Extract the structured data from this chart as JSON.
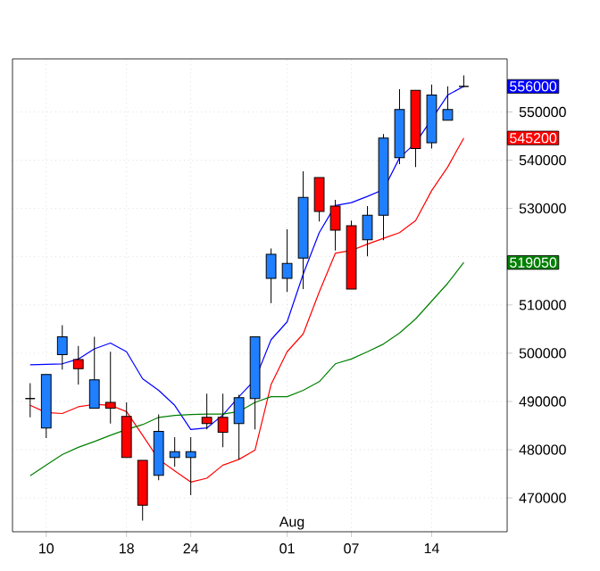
{
  "chart_data": {
    "type": "candlestick",
    "categories": [
      null,
      "10",
      null,
      null,
      null,
      null,
      "18",
      null,
      null,
      null,
      "24",
      null,
      null,
      null,
      null,
      null,
      "01",
      null,
      null,
      null,
      "07",
      null,
      null,
      null,
      null,
      "14",
      null,
      null
    ],
    "ohlc": [
      [
        490600,
        493800,
        486700,
        490600
      ],
      [
        484500,
        495600,
        482400,
        495600
      ],
      [
        499700,
        505800,
        496600,
        503400
      ],
      [
        498700,
        501500,
        493500,
        496800
      ],
      [
        488600,
        503400,
        488600,
        494500
      ],
      [
        489800,
        500300,
        485400,
        488600
      ],
      [
        486900,
        489800,
        478400,
        478400
      ],
      [
        477800,
        477800,
        465300,
        468500
      ],
      [
        474700,
        487300,
        473700,
        483800
      ],
      [
        478400,
        482600,
        476500,
        479600
      ],
      [
        478400,
        482600,
        470600,
        479600
      ],
      [
        486700,
        491600,
        484200,
        485400
      ],
      [
        486700,
        491600,
        480500,
        483600
      ],
      [
        485400,
        491400,
        478000,
        490800
      ],
      [
        490600,
        503400,
        484200,
        503400
      ],
      [
        515500,
        521700,
        510400,
        520500
      ],
      [
        515500,
        525700,
        512700,
        518600
      ],
      [
        519700,
        537700,
        513300,
        532300
      ],
      [
        536400,
        536400,
        527300,
        529400
      ],
      [
        530500,
        531800,
        521300,
        525500
      ],
      [
        526400,
        527500,
        513300,
        513300
      ],
      [
        523500,
        530500,
        520100,
        528600
      ],
      [
        528600,
        545400,
        523400,
        544600
      ],
      [
        540500,
        554700,
        539200,
        550500
      ],
      [
        554500,
        554500,
        538600,
        542400
      ],
      [
        543600,
        555700,
        542400,
        553500
      ],
      [
        548300,
        555300,
        548300,
        550500
      ],
      [
        555300,
        557600,
        555100,
        555300
      ]
    ],
    "colors": [
      "#000000",
      "#1f7fff",
      "#1f7fff",
      "#ff0000",
      "#1f7fff",
      "#ff0000",
      "#ff0000",
      "#ff0000",
      "#1f7fff",
      "#1f7fff",
      "#1f7fff",
      "#ff0000",
      "#ff0000",
      "#1f7fff",
      "#1f7fff",
      "#1f7fff",
      "#1f7fff",
      "#1f7fff",
      "#ff0000",
      "#ff0000",
      "#ff0000",
      "#1f7fff",
      "#1f7fff",
      "#1f7fff",
      "#ff0000",
      "#1f7fff",
      "#1f7fff",
      "#000000"
    ],
    "series": [
      {
        "type": "line",
        "color": "#0000ff",
        "values": [
          497600,
          497700,
          497800,
          498800,
          500900,
          502100,
          500300,
          494700,
          492300,
          489200,
          484200,
          484500,
          487200,
          491000,
          494500,
          502800,
          506500,
          516400,
          525000,
          530600,
          531200,
          532500,
          533900,
          540500,
          543600,
          548500,
          553500,
          555300
        ]
      },
      {
        "type": "line",
        "color": "#ff0000",
        "values": [
          489200,
          487700,
          487500,
          488900,
          489400,
          489200,
          487900,
          483000,
          478000,
          475600,
          473300,
          474100,
          476800,
          478000,
          479900,
          493500,
          500300,
          504000,
          512700,
          520700,
          521300,
          522600,
          523800,
          525000,
          527500,
          533700,
          538600,
          544600
        ]
      },
      {
        "type": "line",
        "color": "#008000",
        "values": [
          474600,
          476800,
          479000,
          480500,
          481700,
          483000,
          484200,
          485200,
          486700,
          487100,
          487300,
          487400,
          487400,
          487900,
          489800,
          491000,
          491000,
          492300,
          494100,
          497800,
          498800,
          500300,
          501900,
          504200,
          507100,
          510800,
          514500,
          518800
        ]
      }
    ],
    "ylim": [
      463000,
      561000
    ],
    "yticks": [
      470000,
      480000,
      490000,
      500000,
      510000,
      {
        "value": 520000,
        "label": null
      },
      530000,
      540000,
      550000
    ],
    "grid": true,
    "annotations": [
      "556000",
      "545200",
      "519050",
      "Aug"
    ]
  }
}
